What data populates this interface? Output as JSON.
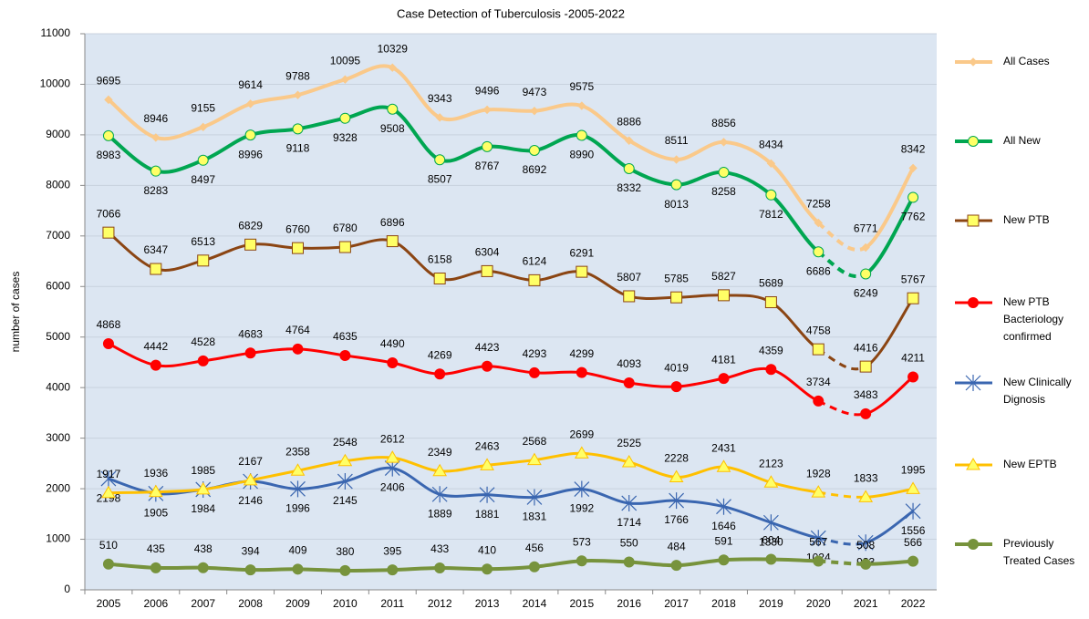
{
  "chart_data": {
    "type": "line",
    "title": "Case Detection of Tuberculosis -2005-2022",
    "ylabel": "number of  cases",
    "categories": [
      "2005",
      "2006",
      "2007",
      "2008",
      "2009",
      "2010",
      "2011",
      "2012",
      "2013",
      "2014",
      "2015",
      "2016",
      "2017",
      "2018",
      "2019",
      "2020",
      "2021",
      "2022"
    ],
    "ylim": [
      0,
      11000
    ],
    "yticks": [
      0,
      1000,
      2000,
      3000,
      4000,
      5000,
      6000,
      7000,
      8000,
      9000,
      10000,
      11000
    ],
    "grid": true,
    "legend": "right",
    "dashed_segment": [
      15,
      16
    ],
    "background": "#dce6f2",
    "series": [
      {
        "name": "All Cases",
        "color": "#fac98a",
        "marker": "diamond",
        "marker_fill": "#fac98a",
        "values": [
          9695,
          8946,
          9155,
          9614,
          9788,
          10095,
          10329,
          9343,
          9496,
          9473,
          9575,
          8886,
          8511,
          8856,
          8434,
          7258,
          6771,
          8342
        ]
      },
      {
        "name": "All New",
        "color": "#00a651",
        "marker": "circle",
        "marker_fill": "#ffff66",
        "values": [
          8983,
          8283,
          8497,
          8996,
          9118,
          9328,
          9508,
          8507,
          8767,
          8692,
          8990,
          8332,
          8013,
          8258,
          7812,
          6686,
          6249,
          7762
        ]
      },
      {
        "name": "New PTB",
        "color": "#8b4513",
        "marker": "square",
        "marker_fill": "#ffff66",
        "values": [
          7066,
          6347,
          6513,
          6829,
          6760,
          6780,
          6896,
          6158,
          6304,
          6124,
          6291,
          5807,
          5785,
          5827,
          5689,
          4758,
          4416,
          5767
        ]
      },
      {
        "name": "New PTB Bacteriology confirmed",
        "color": "#ff0000",
        "marker": "circle",
        "marker_fill": "#ff0000",
        "values": [
          4868,
          4442,
          4528,
          4683,
          4764,
          4635,
          4490,
          4269,
          4423,
          4293,
          4299,
          4093,
          4019,
          4181,
          4359,
          3734,
          3483,
          4211
        ]
      },
      {
        "name": "New Clinically Dignosis",
        "color": "#3a66b0",
        "marker": "star",
        "marker_fill": "#3a66b0",
        "values": [
          2198,
          1905,
          1984,
          2146,
          1996,
          2145,
          2406,
          1889,
          1881,
          1831,
          1992,
          1714,
          1766,
          1646,
          1330,
          1024,
          933,
          1556
        ]
      },
      {
        "name": "New EPTB",
        "color": "#ffc000",
        "marker": "triangle",
        "marker_fill": "#ffff66",
        "values": [
          1917,
          1936,
          1985,
          2167,
          2358,
          2548,
          2612,
          2349,
          2463,
          2568,
          2699,
          2525,
          2228,
          2431,
          2123,
          1928,
          1833,
          1995
        ]
      },
      {
        "name": "Previously Treated Cases",
        "color": "#77933c",
        "marker": "circle",
        "marker_fill": "#77933c",
        "values": [
          510,
          435,
          438,
          394,
          409,
          380,
          395,
          433,
          410,
          456,
          573,
          550,
          484,
          591,
          604,
          567,
          508,
          566
        ]
      }
    ]
  }
}
